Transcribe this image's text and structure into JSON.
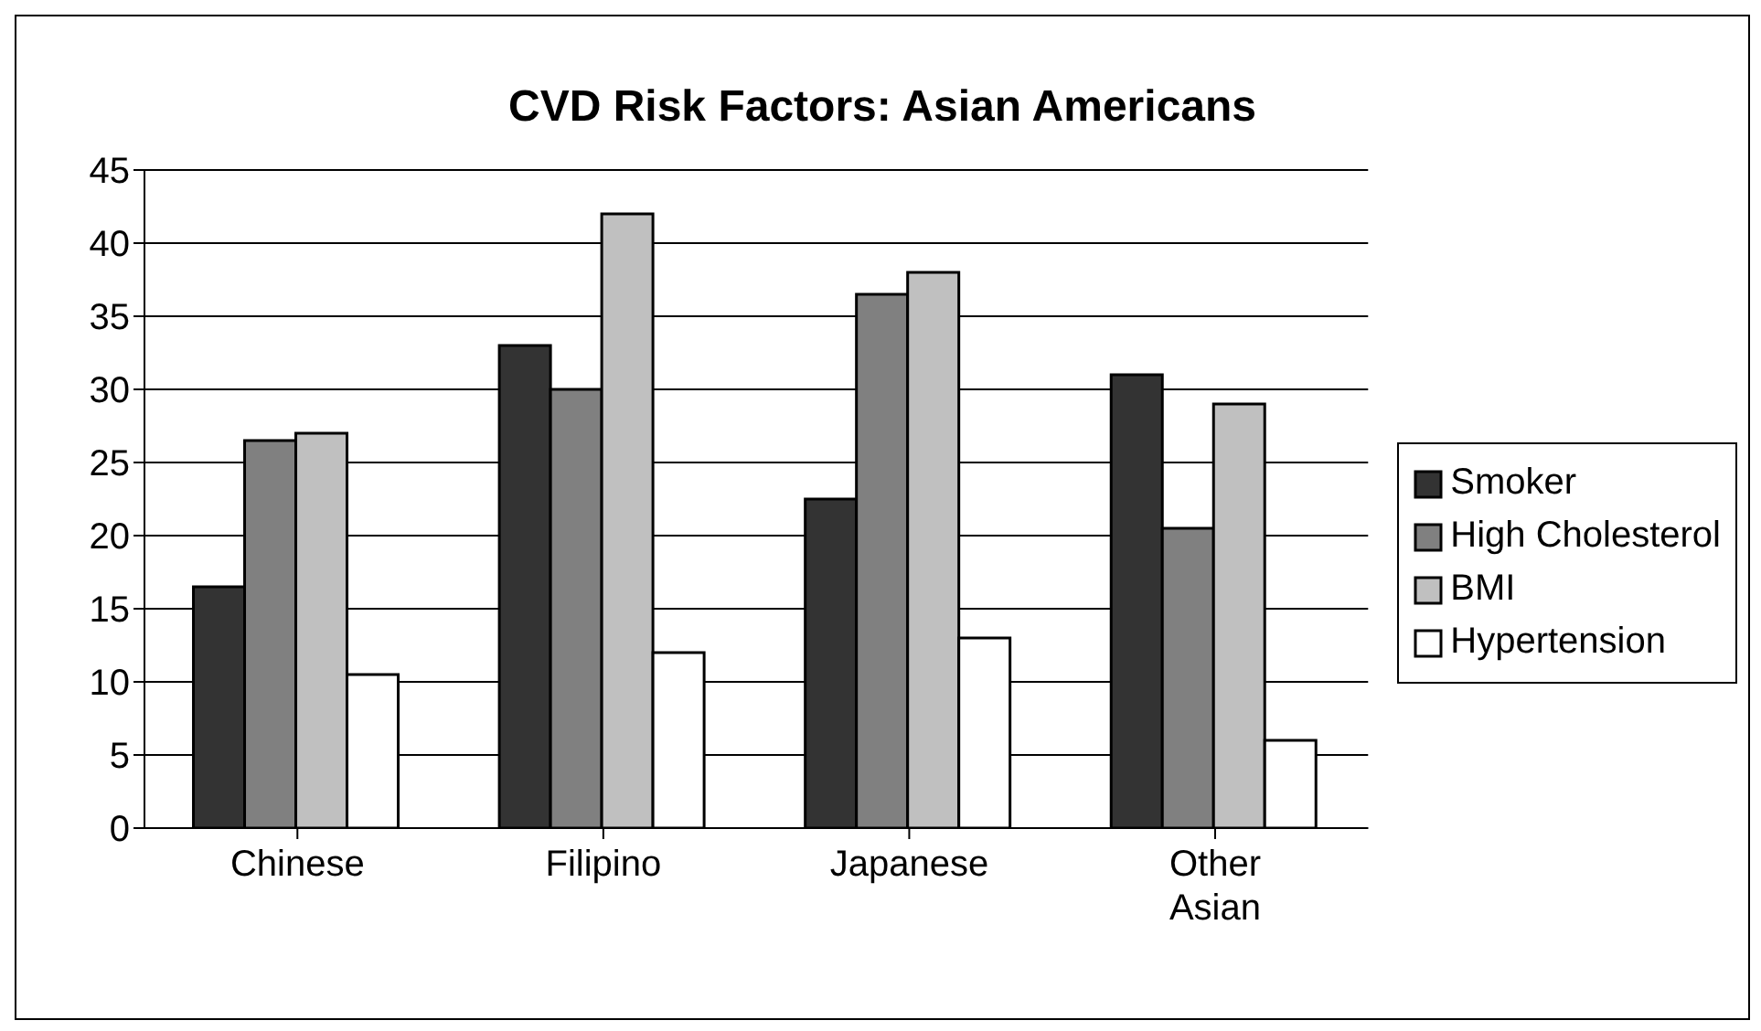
{
  "chart_data": {
    "type": "bar",
    "title": "CVD Risk Factors: Asian Americans",
    "categories": [
      "Chinese",
      "Filipino",
      "Japanese",
      "Other Asian"
    ],
    "series": [
      {
        "name": "Smoker",
        "color": "#333333",
        "values": [
          16.5,
          33,
          22.5,
          31
        ]
      },
      {
        "name": "High Cholesterol",
        "color": "#808080",
        "values": [
          26.5,
          30,
          36.5,
          20.5
        ]
      },
      {
        "name": "BMI",
        "color": "#c0c0c0",
        "values": [
          27,
          42,
          38,
          29
        ]
      },
      {
        "name": "Hypertension",
        "color": "#ffffff",
        "values": [
          10.5,
          12,
          13,
          6
        ]
      }
    ],
    "ylim": [
      0,
      45
    ],
    "yticks": [
      0,
      5,
      10,
      15,
      20,
      25,
      30,
      35,
      40,
      45
    ],
    "grid": "y",
    "legend": "right"
  }
}
